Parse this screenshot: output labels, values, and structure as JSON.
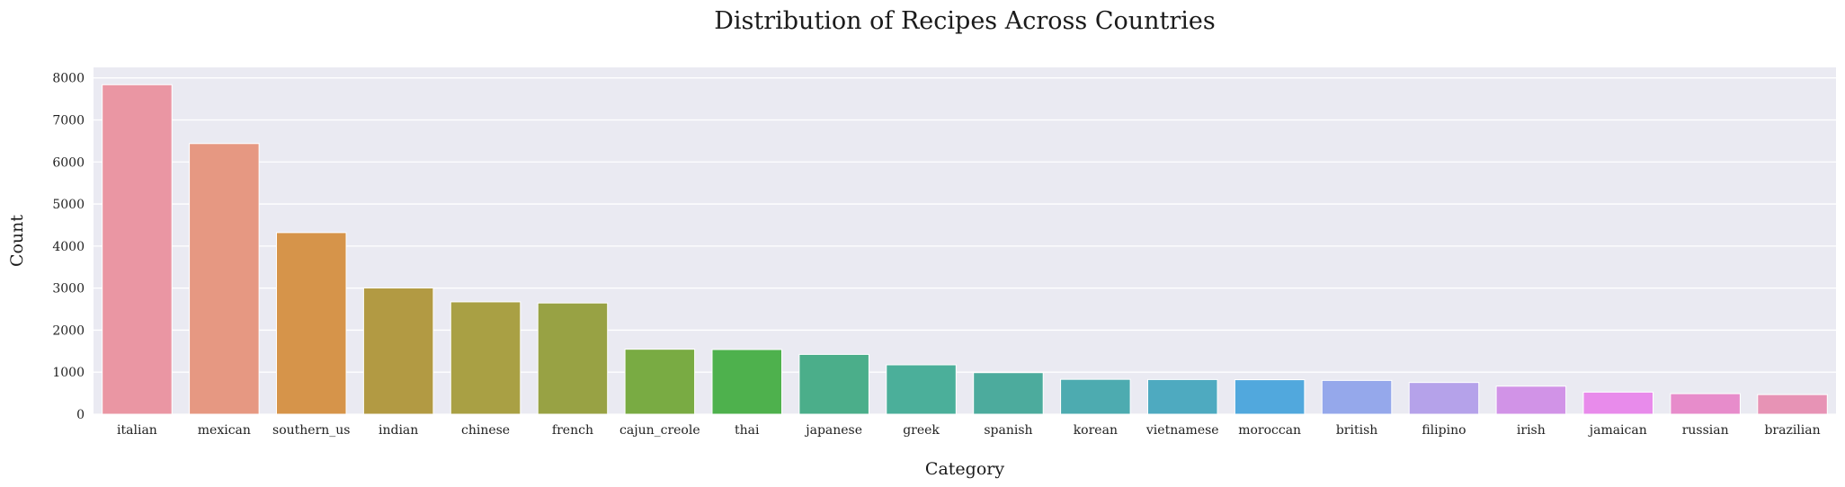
{
  "chart_data": {
    "type": "bar",
    "title": "Distribution of Recipes Across Countries",
    "xlabel": "Category",
    "ylabel": "Count",
    "ylim": [
      0,
      8250
    ],
    "yticks": [
      0,
      1000,
      2000,
      3000,
      4000,
      5000,
      6000,
      7000,
      8000
    ],
    "grid": true,
    "legend": "none",
    "categories": [
      "italian",
      "mexican",
      "southern_us",
      "indian",
      "chinese",
      "french",
      "cajun_creole",
      "thai",
      "japanese",
      "greek",
      "spanish",
      "korean",
      "vietnamese",
      "moroccan",
      "british",
      "filipino",
      "irish",
      "jamaican",
      "russian",
      "brazilian"
    ],
    "values": [
      7838,
      6438,
      4320,
      3003,
      2673,
      2646,
      1546,
      1539,
      1423,
      1175,
      989,
      830,
      825,
      821,
      804,
      755,
      667,
      526,
      489,
      467
    ],
    "colors": [
      "#ea96a3",
      "#e69882",
      "#d6944a",
      "#b29a43",
      "#a9a044",
      "#98a244",
      "#79ab43",
      "#4eb14d",
      "#4bae8a",
      "#4baf9a",
      "#4cab9d",
      "#4dabb0",
      "#4eaac0",
      "#51a8dd",
      "#95a8eb",
      "#b5a2ea",
      "#d193e7",
      "#e88beb",
      "#e78ccb",
      "#e793b5"
    ],
    "background": "#eaeaf2",
    "gridcolor": "#ffffff"
  }
}
